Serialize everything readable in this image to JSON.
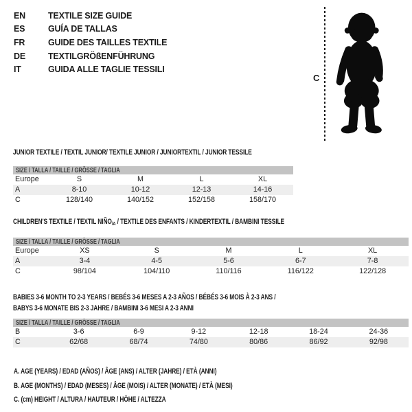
{
  "languages": [
    {
      "code": "EN",
      "title": "TEXTILE SIZE GUIDE"
    },
    {
      "code": "ES",
      "title": "GUÍA DE TALLAS"
    },
    {
      "code": "FR",
      "title": "GUIDE DES TAILLES TEXTILE"
    },
    {
      "code": "DE",
      "title": "TEXTILGRÖßENFÜHRUNG"
    },
    {
      "code": "IT",
      "title": "GUIDA ALLE TAGLIE TESSILI"
    }
  ],
  "figure": {
    "height_label": "C"
  },
  "size_row_header": "SIZE / TALLA / TAILLE / GRÖSSE / TAGLIA",
  "tables": [
    {
      "id": "junior",
      "title_lines": [
        [
          {
            "text": "JUNIOR TEXTILE / TEXTIL JUNIOR/ TEXTILE JUNIOR / JUNIORTEXTIL / JUNIOR TESSILE"
          }
        ]
      ],
      "rows": [
        {
          "label": "Europe",
          "cells": [
            "S",
            "M",
            "L",
            "XL"
          ],
          "striped": false
        },
        {
          "label": "A",
          "cells": [
            "8-10",
            "10-12",
            "12-13",
            "14-16"
          ],
          "striped": true
        },
        {
          "label": "C",
          "cells": [
            "128/140",
            "140/152",
            "152/158",
            "158/170"
          ],
          "striped": false
        }
      ]
    },
    {
      "id": "children",
      "title_lines": [
        [
          {
            "text": "CHILDREN'S TEXTILE / TEXTIL NIÑO"
          },
          {
            "text": "/A",
            "sub": true
          },
          {
            "text": " / TEXTILE DES ENFANTS / KINDERTEXTIL / BAMBINI TESSILE"
          }
        ]
      ],
      "rows": [
        {
          "label": "Europe",
          "cells": [
            "XS",
            "S",
            "M",
            "L",
            "XL"
          ],
          "striped": false
        },
        {
          "label": "A",
          "cells": [
            "3-4",
            "4-5",
            "5-6",
            "6-7",
            "7-8"
          ],
          "striped": true
        },
        {
          "label": "C",
          "cells": [
            "98/104",
            "104/110",
            "110/116",
            "116/122",
            "122/128"
          ],
          "striped": false
        }
      ]
    },
    {
      "id": "babies",
      "title_lines": [
        [
          {
            "text": "BABIES 3-6 MONTH TO 2-3 YEARS / BEBÉS 3-6 MESES A 2-3 AÑOS / BÉBÉS 3-6 MOIS À 2-3 ANS /"
          }
        ],
        [
          {
            "text": "BABYS 3-6 MONATE BIS 2-3 JAHRE / BAMBINI 3-6 MESI A 2-3 ANNI"
          }
        ]
      ],
      "rows": [
        {
          "label": "B",
          "cells": [
            "3-6",
            "6-9",
            "9-12",
            "12-18",
            "18-24",
            "24-36"
          ],
          "striped": false
        },
        {
          "label": "C",
          "cells": [
            "62/68",
            "68/74",
            "74/80",
            "80/86",
            "86/92",
            "92/98"
          ],
          "striped": true
        }
      ]
    }
  ],
  "legend": [
    "A. AGE (YEARS) / EDAD (AÑOS) / ÂGE (ANS) / ALTER (JAHRE) / ETÀ (ANNI)",
    "B. AGE (MONTHS) / EDAD (MESES) / ÂGE (MOIS) / ALTER (MONATE) / ETÀ (MESI)",
    "C. (cm) HEIGHT / ALTURA / HAUTEUR / HÖHE / ALTEZZA"
  ],
  "colors": {
    "header_bar": "#c3c3c3",
    "stripe": "#eeeeee",
    "text": "#1b1b1b",
    "bar_text": "#3d3d3d"
  }
}
